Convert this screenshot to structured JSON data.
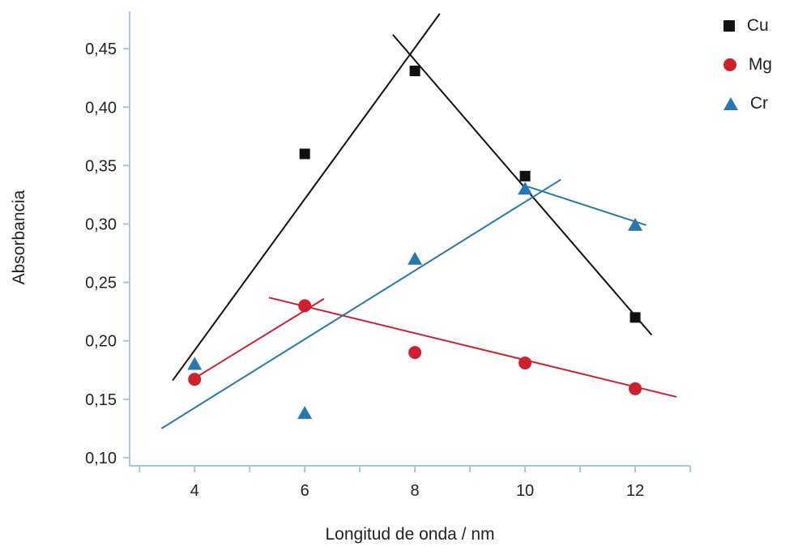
{
  "chart_data": {
    "type": "scatter",
    "title": "",
    "xlabel": "Longitud de onda / nm",
    "ylabel": "Absorbancia",
    "xlim": [
      2.82,
      13.0
    ],
    "ylim": [
      0.093,
      0.482
    ],
    "grid": false,
    "legend_position": "top-right",
    "axis_color": "#a5c8d8",
    "tick_label_color": "#222222",
    "x_major_ticks": [
      4,
      6,
      8,
      10,
      12
    ],
    "x_major_labels": [
      "4",
      "6",
      "8",
      "10",
      "12"
    ],
    "x_minor_ticks": [
      3,
      5,
      7,
      9,
      11,
      13
    ],
    "y_ticks": [
      0.1,
      0.15,
      0.2,
      0.25,
      0.3,
      0.35,
      0.4,
      0.45
    ],
    "y_tick_labels": [
      "0,10",
      "0,15",
      "0,20",
      "0,25",
      "0,30",
      "0,35",
      "0,40",
      "0,45"
    ],
    "series": [
      {
        "name": "Cu",
        "marker": "square",
        "color": "#111111",
        "points": [
          [
            6,
            0.36
          ],
          [
            8,
            0.431
          ],
          [
            10,
            0.341
          ],
          [
            12,
            0.22
          ]
        ],
        "trend_segments": [
          [
            [
              3.6,
              0.166
            ],
            [
              8.45,
              0.48
            ]
          ],
          [
            [
              7.6,
              0.462
            ],
            [
              12.3,
              0.205
            ]
          ]
        ]
      },
      {
        "name": "Mg",
        "marker": "circle",
        "color": "#cf2030",
        "points": [
          [
            4,
            0.167
          ],
          [
            6,
            0.23
          ],
          [
            8,
            0.19
          ],
          [
            10,
            0.181
          ],
          [
            12,
            0.159
          ]
        ],
        "trend_segments": [
          [
            [
              4.0,
              0.168
            ],
            [
              6.35,
              0.236
            ]
          ],
          [
            [
              5.35,
              0.237
            ],
            [
              12.75,
              0.152
            ]
          ]
        ]
      },
      {
        "name": "Cr",
        "marker": "triangle",
        "color": "#2878b0",
        "points": [
          [
            4,
            0.18
          ],
          [
            6,
            0.138
          ],
          [
            8,
            0.27
          ],
          [
            10,
            0.33
          ],
          [
            12,
            0.299
          ]
        ],
        "trend_segments": [
          [
            [
              3.4,
              0.125
            ],
            [
              10.65,
              0.338
            ]
          ],
          [
            [
              10.05,
              0.332
            ],
            [
              12.2,
              0.299
            ]
          ]
        ]
      }
    ],
    "legend": [
      {
        "label": "Cu",
        "marker": "square",
        "color": "#111111"
      },
      {
        "label": "Mg",
        "marker": "circle",
        "color": "#cf2030"
      },
      {
        "label": "Cr",
        "marker": "triangle",
        "color": "#2878b0"
      }
    ]
  }
}
